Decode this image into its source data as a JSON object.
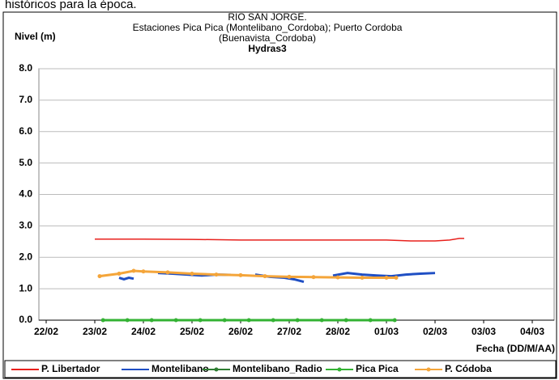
{
  "caption": "históricos para la época.",
  "chart_data": {
    "type": "line",
    "title": [
      "RIO SAN JORGE.",
      "Estaciones Pica Pica (Montelibano_Cordoba); Puerto Cordoba",
      "(Buenavista_Cordoba)",
      "Hydras3"
    ],
    "ylabel": "Nivel (m)",
    "xlabel": "Fecha (DD/M/AA)",
    "xlim": [
      -0.15,
      10.45
    ],
    "xticks": [
      {
        "value": 0,
        "label": "22/02"
      },
      {
        "value": 1,
        "label": "23/02"
      },
      {
        "value": 2,
        "label": "24/02"
      },
      {
        "value": 3,
        "label": "25/02"
      },
      {
        "value": 4,
        "label": "26/02"
      },
      {
        "value": 5,
        "label": "27/02"
      },
      {
        "value": 6,
        "label": "28/02"
      },
      {
        "value": 7,
        "label": "01/03"
      },
      {
        "value": 8,
        "label": "02/03"
      },
      {
        "value": 9,
        "label": "03/03"
      },
      {
        "value": 10,
        "label": "04/03"
      }
    ],
    "ylim": [
      0,
      8
    ],
    "yticks": [
      {
        "value": 0,
        "label": "0.0"
      },
      {
        "value": 1,
        "label": "1.0"
      },
      {
        "value": 2,
        "label": "2.0"
      },
      {
        "value": 3,
        "label": "3.0"
      },
      {
        "value": 4,
        "label": "4.0"
      },
      {
        "value": 5,
        "label": "5.0"
      },
      {
        "value": 6,
        "label": "6.0"
      },
      {
        "value": 7,
        "label": "7.0"
      },
      {
        "value": 8,
        "label": "8.0"
      }
    ],
    "grid": true,
    "legend": "bottom",
    "series": [
      {
        "name": "P. Libertador",
        "color": "#e8201c",
        "marker": false,
        "x": [
          1.0,
          2.0,
          3.0,
          4.0,
          5.0,
          6.0,
          7.0,
          7.5,
          8.0,
          8.3,
          8.5,
          8.6
        ],
        "values": [
          2.58,
          2.58,
          2.57,
          2.55,
          2.55,
          2.55,
          2.55,
          2.52,
          2.52,
          2.55,
          2.6,
          2.6
        ]
      },
      {
        "name": "Montelibano",
        "color": "#1f4fc4",
        "marker": false,
        "x": [
          1.5,
          1.6,
          1.7,
          1.8,
          2.0,
          2.3,
          2.6,
          2.9,
          3.2,
          3.5,
          3.8,
          4.0,
          4.3,
          4.6,
          4.9,
          5.1,
          5.3,
          5.6,
          5.9,
          6.2,
          6.5,
          6.8,
          7.1,
          7.4,
          7.7,
          8.0,
          8.3,
          8.5
        ],
        "values": [
          1.35,
          1.3,
          1.35,
          1.32,
          null,
          1.5,
          1.48,
          1.45,
          1.42,
          1.45,
          1.44,
          null,
          1.45,
          1.38,
          1.35,
          1.3,
          1.22,
          null,
          1.42,
          1.5,
          1.45,
          1.42,
          1.4,
          1.45,
          1.48,
          1.5,
          null,
          1.25
        ]
      },
      {
        "name": "Montelibano_Radio",
        "color": "#2e7d32",
        "marker": true,
        "x": [],
        "values": []
      },
      {
        "name": "Pica Pica",
        "color": "#33b233",
        "marker": true,
        "x": [
          1.17,
          1.67,
          2.17,
          2.67,
          3.17,
          3.67,
          4.17,
          4.67,
          5.17,
          5.67,
          6.17,
          6.67,
          7.17
        ],
        "values": [
          0,
          0,
          0,
          0,
          0,
          0,
          0,
          0,
          0,
          0,
          0,
          0,
          0
        ]
      },
      {
        "name": "P. Códoba",
        "color": "#f4a53a",
        "marker": true,
        "x": [
          1.1,
          1.5,
          1.8,
          2.0,
          2.5,
          3.0,
          3.5,
          4.0,
          4.5,
          5.0,
          5.5,
          6.0,
          6.5,
          7.0,
          7.2
        ],
        "values": [
          1.4,
          1.48,
          1.57,
          1.55,
          1.52,
          1.48,
          1.45,
          1.43,
          1.4,
          1.38,
          1.37,
          1.36,
          1.35,
          1.35,
          1.35
        ]
      }
    ]
  }
}
